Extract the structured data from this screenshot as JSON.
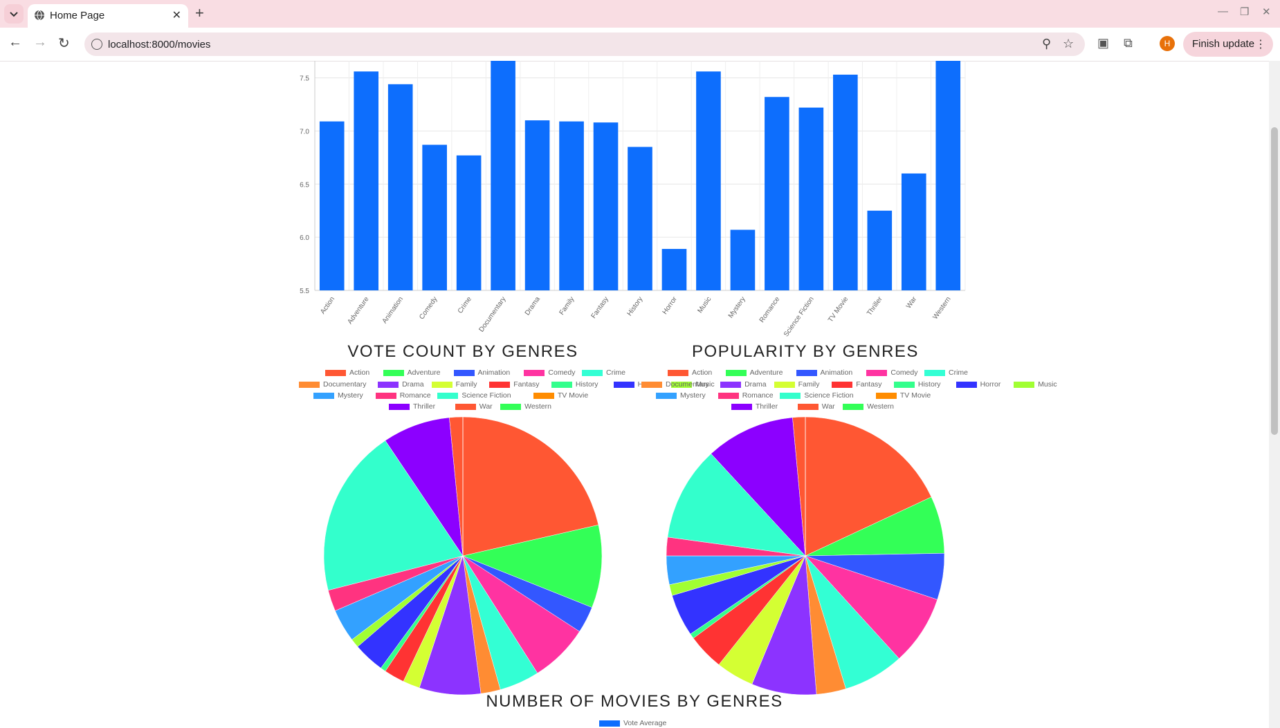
{
  "browser": {
    "tab_title": "Home Page",
    "url": "localhost:8000/movies",
    "profile_initial": "H",
    "update_label": "Finish update",
    "icons": [
      "tab-list-icon",
      "globe-icon",
      "close-icon",
      "plus-icon",
      "minimize-icon",
      "restore-icon",
      "window-close-icon",
      "back-icon",
      "forward-icon",
      "reload-icon",
      "info-icon",
      "zoom-icon",
      "star-icon",
      "extension-icon",
      "puzzle-icon",
      "kebab-menu-icon"
    ]
  },
  "page": {
    "vote_count_title": "VOTE COUNT BY GENRES",
    "popularity_title": "POPULARITY BY GENRES",
    "num_movies_title": "NUMBER OF MOVIES BY GENRES",
    "bottom_legend_label": "Vote Average"
  },
  "chart_data": [
    {
      "type": "bar",
      "series": [
        {
          "name": "Vote Average",
          "color": "#0d6efd",
          "values": [
            7.09,
            7.56,
            7.44,
            6.87,
            6.77,
            7.68,
            7.1,
            7.09,
            7.08,
            6.85,
            5.89,
            7.56,
            6.07,
            7.32,
            7.22,
            7.53,
            6.25,
            6.6,
            7.68
          ]
        }
      ],
      "categories": [
        "Action",
        "Adventure",
        "Animation",
        "Comedy",
        "Crime",
        "Documentary",
        "Drama",
        "Family",
        "Fantasy",
        "History",
        "Horror",
        "Music",
        "Mystery",
        "Romance",
        "Science Fiction",
        "TV Movie",
        "Thriller",
        "War",
        "Western"
      ],
      "y_ticks": [
        "5.5",
        "6.0",
        "6.5",
        "7.0",
        "7.5"
      ],
      "ylim": [
        5.5,
        7.66
      ],
      "grid": true
    },
    {
      "type": "pie",
      "title": "VOTE COUNT BY GENRES",
      "legend": "top",
      "labels": [
        "Action",
        "Adventure",
        "Animation",
        "Comedy",
        "Crime",
        "Documentary",
        "Drama",
        "Family",
        "Fantasy",
        "History",
        "Horror",
        "Music",
        "Mystery",
        "Romance",
        "Science Fiction",
        "TV Movie",
        "Thriller",
        "War",
        "Western"
      ],
      "values": [
        20.7,
        9.3,
        3.0,
        6.6,
        4.5,
        2.2,
        6.9,
        1.9,
        2.3,
        0.6,
        3.5,
        1.0,
        3.7,
        2.4,
        18.9,
        0.0,
        7.6,
        1.5,
        0.0
      ],
      "colors": [
        "#ff5733",
        "#33ff57",
        "#3357ff",
        "#ff33a1",
        "#33ffd4",
        "#ff8c33",
        "#8c33ff",
        "#d4ff33",
        "#ff3333",
        "#33ff8c",
        "#3333ff",
        "#a1ff33",
        "#33a1ff",
        "#ff3380",
        "#33ffcc",
        "#ff8c00",
        "#8c00ff",
        "#ff5733",
        "#33ff57"
      ]
    },
    {
      "type": "pie",
      "title": "POPULARITY BY GENRES",
      "legend": "top",
      "labels": [
        "Action",
        "Adventure",
        "Animation",
        "Comedy",
        "Crime",
        "Documentary",
        "Drama",
        "Family",
        "Fantasy",
        "History",
        "Horror",
        "Music",
        "Mystery",
        "Romance",
        "Science Fiction",
        "TV Movie",
        "Thriller",
        "War",
        "Western"
      ],
      "values": [
        18.4,
        6.8,
        5.5,
        8.3,
        7.2,
        3.5,
        7.7,
        4.5,
        4.3,
        0.6,
        5.0,
        1.3,
        3.4,
        2.2,
        11.2,
        0.0,
        10.6,
        1.5,
        0.0
      ],
      "colors": [
        "#ff5733",
        "#33ff57",
        "#3357ff",
        "#ff33a1",
        "#33ffd4",
        "#ff8c33",
        "#8c33ff",
        "#d4ff33",
        "#ff3333",
        "#33ff8c",
        "#3333ff",
        "#a1ff33",
        "#33a1ff",
        "#ff3380",
        "#33ffcc",
        "#ff8c00",
        "#8c00ff",
        "#ff5733",
        "#33ff57"
      ]
    }
  ]
}
